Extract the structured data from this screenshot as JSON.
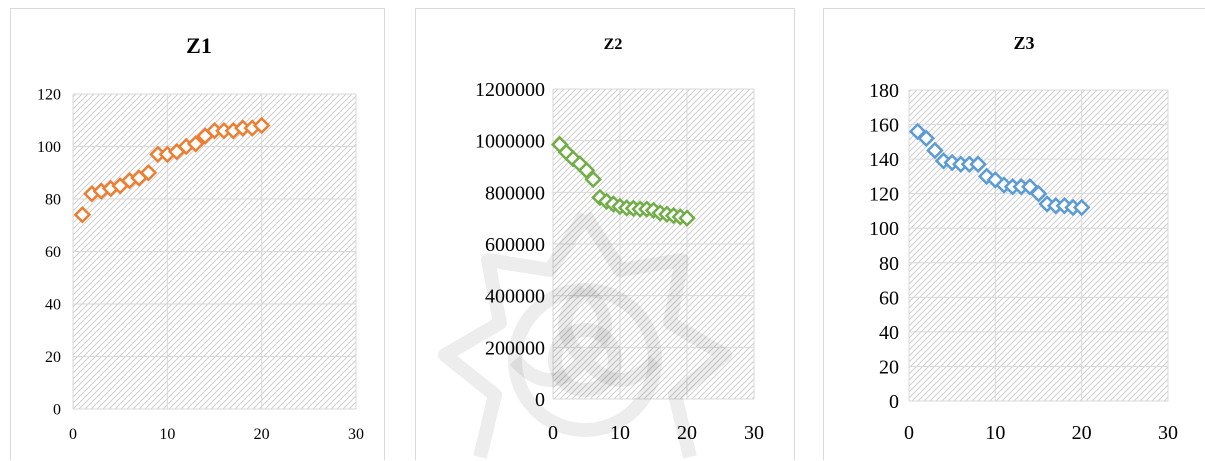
{
  "chart_data": [
    {
      "type": "scatter",
      "title": "Z1",
      "xlabel": "",
      "ylabel": "",
      "xlim": [
        0,
        30
      ],
      "ylim": [
        0,
        120
      ],
      "xticks": [
        0,
        10,
        20,
        30
      ],
      "yticks": [
        0,
        20,
        40,
        60,
        80,
        100,
        120
      ],
      "grid": true,
      "color": "#ed7d31",
      "x": [
        1,
        2,
        3,
        4,
        5,
        6,
        7,
        8,
        9,
        10,
        11,
        12,
        13,
        14,
        15,
        16,
        17,
        18,
        19,
        20
      ],
      "y": [
        74,
        82,
        83,
        84,
        85,
        87,
        88,
        90,
        97,
        97,
        98,
        100,
        101,
        104,
        106,
        106,
        106,
        107,
        107,
        108
      ]
    },
    {
      "type": "scatter",
      "title": "Z2",
      "xlabel": "",
      "ylabel": "",
      "xlim": [
        0,
        30
      ],
      "ylim": [
        0,
        1200000
      ],
      "xticks": [
        0,
        10,
        20,
        30
      ],
      "yticks": [
        0,
        200000,
        400000,
        600000,
        800000,
        1000000,
        1200000
      ],
      "grid": true,
      "color": "#70ad47",
      "x": [
        1,
        2,
        3,
        4,
        5,
        6,
        7,
        8,
        9,
        10,
        11,
        12,
        13,
        14,
        15,
        16,
        17,
        18,
        19,
        20
      ],
      "y": [
        985000,
        955000,
        930000,
        910000,
        885000,
        850000,
        780000,
        765000,
        755000,
        745000,
        740000,
        738000,
        735000,
        735000,
        730000,
        720000,
        715000,
        710000,
        705000,
        700000
      ]
    },
    {
      "type": "scatter",
      "title": "Z3",
      "xlabel": "",
      "ylabel": "",
      "xlim": [
        0,
        30
      ],
      "ylim": [
        0,
        180
      ],
      "xticks": [
        0,
        10,
        20,
        30
      ],
      "yticks": [
        0,
        20,
        40,
        60,
        80,
        100,
        120,
        140,
        160,
        180
      ],
      "grid": true,
      "color": "#5b9bd5",
      "x": [
        1,
        2,
        3,
        4,
        5,
        6,
        7,
        8,
        9,
        10,
        11,
        12,
        13,
        14,
        15,
        16,
        17,
        18,
        19,
        20
      ],
      "y": [
        156,
        152,
        145,
        139,
        138,
        137,
        137,
        137,
        130,
        128,
        125,
        124,
        124,
        124,
        120,
        114,
        113,
        113,
        112,
        112
      ]
    }
  ]
}
